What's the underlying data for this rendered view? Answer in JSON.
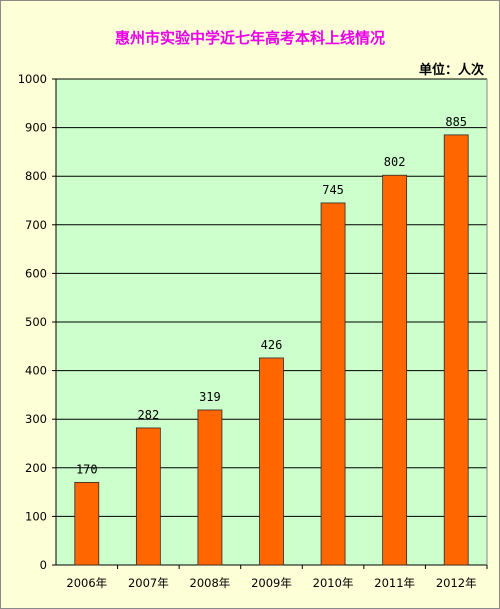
{
  "title": "惠州市实验中学近七年高考本科上线情况",
  "unit_label": "单位：人次",
  "colors": {
    "bar": "#ff6600",
    "bar_edge": "#2a2a2a",
    "plot_bg": "#ccffcc",
    "page_bg": "#fdffd6",
    "title": "#e800e8",
    "grid": "#000000"
  },
  "chart_data": {
    "type": "bar",
    "title": "惠州市实验中学近七年高考本科上线情况",
    "categories": [
      "2006年",
      "2007年",
      "2008年",
      "2009年",
      "2010年",
      "2011年",
      "2012年"
    ],
    "values": [
      170,
      282,
      319,
      426,
      745,
      802,
      885
    ],
    "ylim": [
      0,
      1000
    ],
    "yticks": [
      0,
      100,
      200,
      300,
      400,
      500,
      600,
      700,
      800,
      900,
      1000
    ],
    "grid": true,
    "data_labels": true
  }
}
